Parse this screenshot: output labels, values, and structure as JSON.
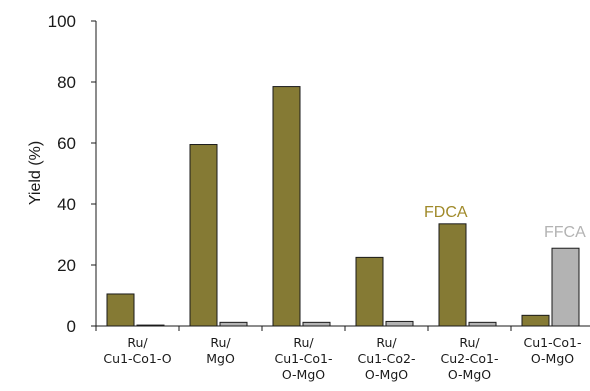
{
  "chart_data": {
    "type": "bar",
    "ylabel": "Yield (%)",
    "xlabel": "",
    "ylim": [
      0,
      100
    ],
    "yticks": [
      0,
      20,
      40,
      60,
      80,
      100
    ],
    "categories": [
      [
        "Ru/",
        "Cu1-Co1-O"
      ],
      [
        "Ru/",
        "MgO"
      ],
      [
        "Ru/",
        "Cu1-Co1-",
        "O-MgO"
      ],
      [
        "Ru/",
        "Cu1-Co2-",
        "O-MgO"
      ],
      [
        "Ru/",
        "Cu2-Co1-",
        "O-MgO"
      ],
      [
        "Cu1-Co1-",
        "O-MgO"
      ]
    ],
    "series": [
      {
        "name": "FDCA",
        "color": "#857a34",
        "values": [
          10.5,
          59.5,
          78.5,
          22.5,
          33.5,
          3.5
        ]
      },
      {
        "name": "FFCA",
        "color": "#b3b3b3",
        "values": [
          0.3,
          1.2,
          1.2,
          1.5,
          1.2,
          25.5
        ]
      }
    ],
    "annotations": [
      {
        "text": "FDCA",
        "color": "#a08a2a"
      },
      {
        "text": "FFCA",
        "color": "#b3b3b3"
      }
    ],
    "grid": false
  }
}
